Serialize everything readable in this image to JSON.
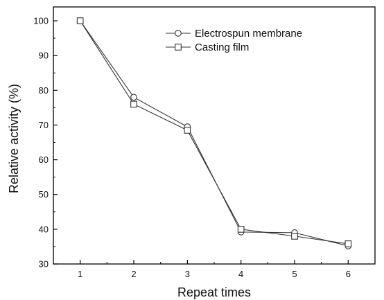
{
  "chart_data": {
    "type": "line",
    "xlabel": "Repeat times",
    "ylabel": "Relative activity (%)",
    "x": [
      1,
      2,
      3,
      4,
      5,
      6
    ],
    "xlim": [
      0.5,
      6.5
    ],
    "ylim": [
      30,
      104
    ],
    "xticks": [
      1,
      2,
      3,
      4,
      5,
      6
    ],
    "yticks": [
      30,
      40,
      50,
      60,
      70,
      80,
      90,
      100
    ],
    "grid": false,
    "legend_position": "top-right",
    "series": [
      {
        "name": "Electrospun membrane",
        "marker": "circle",
        "values": [
          100,
          78,
          69.5,
          39.2,
          39,
          35.2
        ]
      },
      {
        "name": "Casting film",
        "marker": "square",
        "values": [
          100,
          76,
          68.5,
          40,
          38,
          35.8
        ]
      }
    ],
    "colors": {
      "line": "#333333",
      "marker_fill": "#ffffff",
      "axis": "#000000"
    }
  }
}
